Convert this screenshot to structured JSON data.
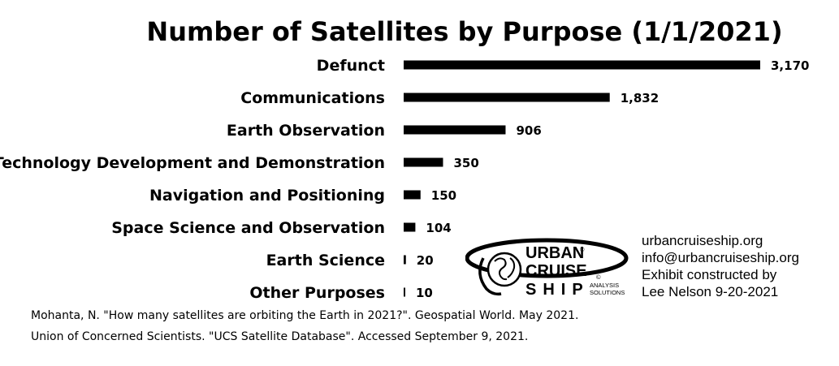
{
  "chart_data": {
    "type": "bar",
    "orientation": "horizontal",
    "title": "Number of Satellites by Purpose (1/1/2021)",
    "categories": [
      "Defunct",
      "Communications",
      "Earth Observation",
      "Technology Development and Demonstration",
      "Navigation and Positioning",
      "Space Science and Observation",
      "Earth Science",
      "Other Purposes"
    ],
    "values": [
      3170,
      1832,
      906,
      350,
      150,
      104,
      20,
      10
    ],
    "value_labels": [
      "3,170",
      "1,832",
      "906",
      "350",
      "150",
      "104",
      "20",
      "10"
    ],
    "xlim": [
      0,
      3170
    ],
    "grid": false,
    "legend": "none",
    "bar_color": "#000000"
  },
  "sources": [
    "Mohanta, N. \"How many satellites are orbiting the Earth in 2021?\". Geospatial World. May 2021.",
    "Union of Concerned Scientists. \"UCS Satellite Database\". Accessed September 9, 2021."
  ],
  "credit": {
    "website": "urbancruiseship.org",
    "email": "info@urbancruiseship.org",
    "line1": "Exhibit constructed by",
    "line2": "Lee Nelson 9-20-2021"
  },
  "logo": {
    "line1": "URBAN",
    "line2": "CRUISE",
    "line3": "SHIP",
    "registered": "®",
    "tagline1": "ANALYSIS",
    "tagline2": "SOLUTIONS",
    "copyright": "©"
  }
}
